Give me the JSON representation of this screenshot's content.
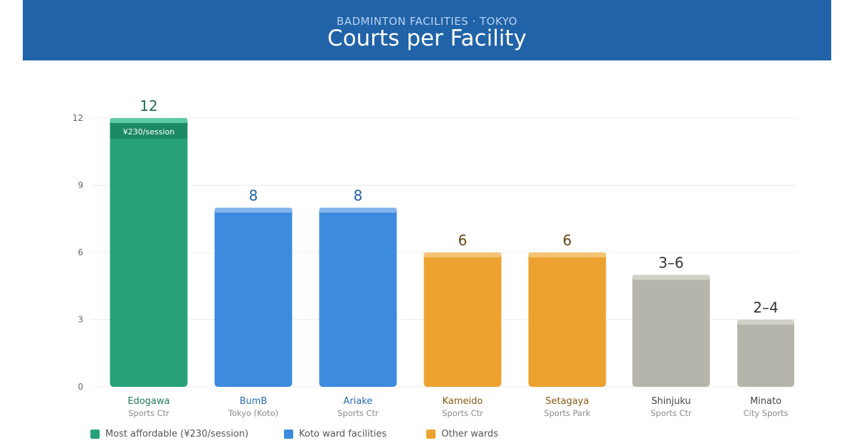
{
  "header": {
    "eyebrow": "BADMINTON FACILITIES · TOKYO",
    "title": "Courts per Facility"
  },
  "colors": {
    "header_bg": "#2163a8",
    "green": "#26a17a",
    "green_top": "#5fc9a3",
    "green_band": "#1d8a66",
    "blue": "#3d8bdf",
    "blue_top": "#85b5ec",
    "orange": "#eda230",
    "orange_top": "#f3c473",
    "gray": "#b6b5ab",
    "gray_top": "#d2d1c8",
    "grid": "#ececec",
    "tick": "#666666"
  },
  "chart_data": {
    "type": "bar",
    "title": "Courts per Facility",
    "subtitle": "BADMINTON FACILITIES · TOKYO",
    "xlabel": "",
    "ylabel": "",
    "ylim": [
      0,
      12
    ],
    "yticks": [
      0,
      3,
      6,
      9,
      12
    ],
    "grid": true,
    "legend_position": "bottom-left",
    "categories": [
      {
        "name": "Edogawa",
        "sub": "Sports Ctr",
        "value": 12,
        "label": "12",
        "group": "green",
        "badge": "¥230/session"
      },
      {
        "name": "BumB",
        "sub": "Tokyo (Koto)",
        "value": 8,
        "label": "8",
        "group": "blue"
      },
      {
        "name": "Ariake",
        "sub": "Sports Ctr",
        "value": 8,
        "label": "8",
        "group": "blue"
      },
      {
        "name": "Kameido",
        "sub": "Sports Ctr",
        "value": 6,
        "label": "6",
        "group": "orange"
      },
      {
        "name": "Setagaya",
        "sub": "Sports Park",
        "value": 6,
        "label": "6",
        "group": "orange"
      },
      {
        "name": "Shinjuku",
        "sub": "Sports Ctr",
        "value": 5,
        "label": "3–6",
        "group": "gray"
      },
      {
        "name": "Minato",
        "sub": "City Sports",
        "value": 3,
        "label": "2–4",
        "group": "gray"
      }
    ],
    "legend": [
      {
        "label": "Most affordable (¥230/session)",
        "color": "#26a17a"
      },
      {
        "label": "Koto ward facilities",
        "color": "#3d8bdf"
      },
      {
        "label": "Other wards",
        "color": "#eda230"
      }
    ]
  }
}
